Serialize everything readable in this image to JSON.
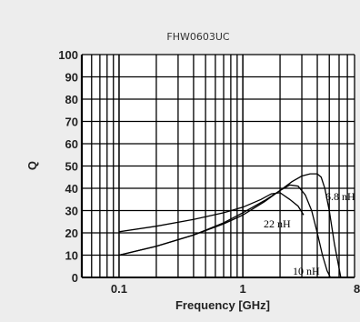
{
  "chart_data": {
    "type": "line",
    "title": "FHW0603UC",
    "xlabel": "Frequency [GHz]",
    "ylabel": "Q",
    "xscale": "log",
    "xlim": [
      0.05,
      8
    ],
    "ylim": [
      0,
      100
    ],
    "grid": true,
    "yticks": [
      "0",
      "10",
      "20",
      "30",
      "40",
      "50",
      "60",
      "70",
      "80",
      "90",
      "100"
    ],
    "xticks": [
      {
        "value": 0.1,
        "label": "0.1"
      },
      {
        "value": 1,
        "label": "1"
      },
      {
        "value": 8,
        "label": "8"
      }
    ],
    "series": [
      {
        "name": "6.8 nH",
        "x": [
          0.1,
          0.2,
          0.4,
          0.7,
          1.0,
          1.5,
          2.0,
          2.5,
          3.0,
          3.5,
          4.0,
          4.3,
          4.6,
          5.0,
          5.5,
          6.2
        ],
        "y": [
          10,
          14,
          19,
          24,
          28,
          34,
          39,
          43,
          45.5,
          46.5,
          46.5,
          45,
          40,
          30,
          15,
          0
        ]
      },
      {
        "name": "10 nH",
        "x": [
          0.1,
          0.2,
          0.4,
          0.7,
          1.0,
          1.5,
          2.0,
          2.4,
          2.8,
          3.2,
          3.6,
          4.0,
          4.4,
          4.8,
          5.1
        ],
        "y": [
          10,
          14,
          19,
          24.5,
          29,
          34.5,
          39,
          41.5,
          41,
          37,
          30,
          20,
          10,
          3,
          0
        ]
      },
      {
        "name": "22 nH",
        "x": [
          0.1,
          0.2,
          0.4,
          0.7,
          1.0,
          1.4,
          1.7,
          2.0,
          2.4,
          2.8,
          3.1
        ],
        "y": [
          20.5,
          23,
          26,
          29,
          31.5,
          35,
          37.5,
          38,
          35,
          32,
          28
        ]
      }
    ]
  }
}
